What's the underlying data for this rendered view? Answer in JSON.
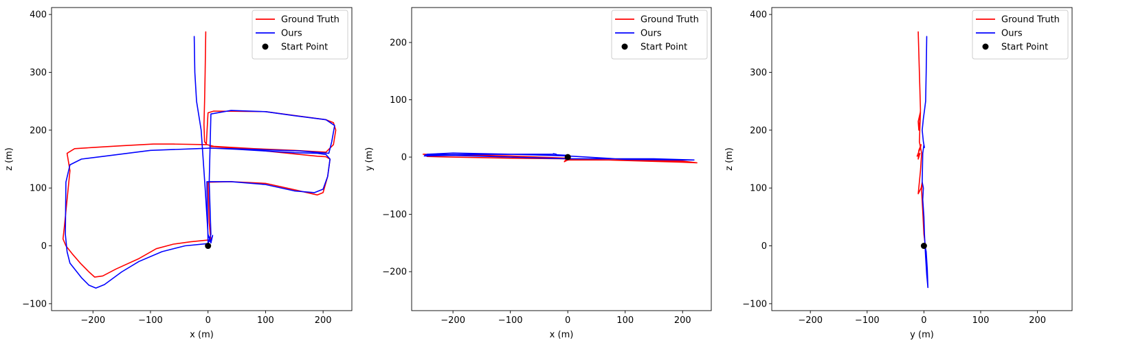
{
  "figure": {
    "colors": {
      "ground_truth": "#ff0000",
      "ours": "#0000ff",
      "start": "#000000"
    },
    "legend_placement": "top-right"
  },
  "chart_data": [
    {
      "type": "line",
      "title": "",
      "xlabel": "x (m)",
      "ylabel": "z (m)",
      "xlim": [
        -272,
        250
      ],
      "ylim": [
        -112,
        412
      ],
      "xticks": [
        -200,
        -100,
        0,
        100,
        200
      ],
      "yticks": [
        -100,
        0,
        100,
        200,
        300,
        400
      ],
      "legend": [
        "Ground Truth",
        "Ours",
        "Start Point"
      ],
      "grid": false,
      "series": [
        {
          "name": "Ground Truth",
          "color": "#ff0000",
          "x": [
            -4,
            -5,
            -6,
            -7,
            -6,
            -2,
            10,
            80,
            150,
            205,
            218,
            222,
            218,
            205,
            100,
            10,
            0,
            -3,
            -60,
            -95,
            -150,
            -200,
            -232,
            -245,
            -240,
            -250,
            -252,
            -247,
            -235,
            -222,
            -207,
            -197,
            -183,
            -160,
            -120,
            -90,
            -60,
            -30,
            0,
            5,
            2,
            0,
            40,
            100,
            150,
            190,
            200,
            208,
            212,
            205,
            190,
            150,
            100,
            60,
            3
          ],
          "y": [
            370,
            300,
            250,
            210,
            180,
            175,
            172,
            168,
            165,
            162,
            175,
            200,
            213,
            218,
            232,
            233,
            230,
            175,
            176,
            176,
            173,
            170,
            168,
            160,
            130,
            30,
            12,
            0,
            -15,
            -30,
            -45,
            -54,
            -52,
            -40,
            -22,
            -5,
            3,
            7,
            10,
            8,
            40,
            110,
            111,
            108,
            97,
            88,
            92,
            120,
            150,
            154,
            155,
            159,
            164,
            168,
            172
          ]
        },
        {
          "name": "Ours",
          "color": "#0000ff",
          "x": [
            -24,
            -23,
            -20,
            -12,
            -5,
            0,
            5,
            8,
            5,
            0,
            -2,
            40,
            100,
            150,
            185,
            200,
            208,
            212,
            205,
            190,
            150,
            100,
            50,
            5,
            -20,
            -100,
            -180,
            -220,
            -240,
            -247,
            -248,
            -245,
            -240,
            -220,
            -207,
            -195,
            -180,
            -150,
            -120,
            -80,
            -40,
            0,
            5,
            2,
            5,
            40,
            100,
            150,
            205,
            220,
            215,
            210,
            160,
            100,
            40,
            0
          ],
          "y": [
            362,
            300,
            250,
            200,
            100,
            20,
            5,
            18,
            10,
            6,
            111,
            111,
            106,
            95,
            92,
            98,
            120,
            150,
            158,
            160,
            161,
            164,
            167,
            169,
            168,
            165,
            155,
            150,
            140,
            110,
            20,
            -10,
            -30,
            -55,
            -68,
            -73,
            -67,
            -45,
            -27,
            -10,
            0,
            4,
            20,
            110,
            228,
            234,
            232,
            225,
            218,
            208,
            180,
            160,
            164,
            166,
            168,
            169
          ]
        },
        {
          "name": "Start Point",
          "color": "#000000",
          "marker": true,
          "x": [
            0
          ],
          "y": [
            0
          ]
        }
      ]
    },
    {
      "type": "line",
      "title": "",
      "xlabel": "x (m)",
      "ylabel": "y (m)",
      "xlim": [
        -272,
        250
      ],
      "ylim": [
        -268,
        261
      ],
      "xticks": [
        -200,
        -100,
        0,
        100,
        200
      ],
      "yticks": [
        -200,
        -100,
        0,
        100,
        200
      ],
      "legend": [
        "Ground Truth",
        "Ours",
        "Start Point"
      ],
      "grid": false,
      "series": [
        {
          "name": "Ground Truth",
          "color": "#ff0000",
          "x": [
            -250,
            -245,
            -200,
            -100,
            0,
            100,
            200,
            225,
            200,
            100,
            0,
            -6,
            -3,
            0,
            -100,
            -200,
            -252
          ],
          "y": [
            5,
            1,
            0,
            -2,
            -3,
            -6,
            -9,
            -10,
            -7,
            -5,
            -5,
            -8,
            -4,
            -2,
            2,
            4,
            5
          ]
        },
        {
          "name": "Ours",
          "color": "#0000ff",
          "x": [
            -245,
            -200,
            -100,
            0,
            100,
            200,
            220,
            150,
            50,
            0,
            -100,
            -200,
            -250,
            -248,
            -100,
            -20,
            -25,
            -20,
            0
          ],
          "y": [
            5,
            7,
            5,
            2,
            -4,
            -5,
            -5,
            -3,
            -3,
            -3,
            0,
            3,
            2,
            4,
            5,
            5,
            6,
            4,
            3
          ]
        },
        {
          "name": "Start Point",
          "color": "#000000",
          "marker": true,
          "x": [
            0
          ],
          "y": [
            0
          ]
        }
      ]
    },
    {
      "type": "line",
      "title": "",
      "xlabel": "y (m)",
      "ylabel": "z (m)",
      "xlim": [
        -268,
        261
      ],
      "ylim": [
        -112,
        412
      ],
      "xticks": [
        -200,
        -100,
        0,
        100,
        200
      ],
      "yticks": [
        -100,
        0,
        100,
        200,
        300,
        400
      ],
      "legend": [
        "Ground Truth",
        "Ours",
        "Start Point"
      ],
      "grid": false,
      "series": [
        {
          "name": "Ground Truth",
          "color": "#ff0000",
          "x": [
            -10,
            -8,
            -6,
            -7,
            -9,
            -10,
            -6,
            -8,
            -4,
            -6,
            -10,
            -5,
            -3,
            -4,
            -2,
            0,
            2,
            0
          ],
          "y": [
            370,
            300,
            235,
            220,
            200,
            215,
            232,
            180,
            160,
            130,
            90,
            100,
            110,
            95,
            60,
            20,
            5,
            0
          ],
          "segments": [
            {
              "x": [
                -10,
                -8,
                -6,
                -7,
                -9,
                -10,
                -6,
                -8,
                -4,
                -6,
                -10,
                -5,
                -3,
                -4,
                -2,
                0,
                2,
                0
              ],
              "y": [
                370,
                300,
                235,
                220,
                200,
                215,
                232,
                180,
                160,
                130,
                90,
                100,
                110,
                95,
                60,
                20,
                5,
                0
              ]
            },
            {
              "x": [
                -12,
                -6,
                -5,
                -9,
                -10,
                -7
              ],
              "y": [
                155,
                170,
                175,
                165,
                150,
                160
              ]
            }
          ]
        },
        {
          "name": "Ours",
          "color": "#0000ff",
          "x": [
            5,
            4,
            3,
            1,
            -1,
            -3,
            -1,
            1,
            0,
            -2,
            -3,
            -1,
            -2,
            0,
            1,
            2,
            3,
            5,
            7,
            6,
            4,
            2
          ],
          "y": [
            362,
            300,
            250,
            234,
            220,
            200,
            180,
            170,
            175,
            160,
            110,
            100,
            80,
            50,
            20,
            0,
            -20,
            -50,
            -72,
            -40,
            -10,
            0
          ]
        },
        {
          "name": "Start Point",
          "color": "#000000",
          "marker": true,
          "x": [
            0
          ],
          "y": [
            0
          ]
        }
      ]
    }
  ]
}
